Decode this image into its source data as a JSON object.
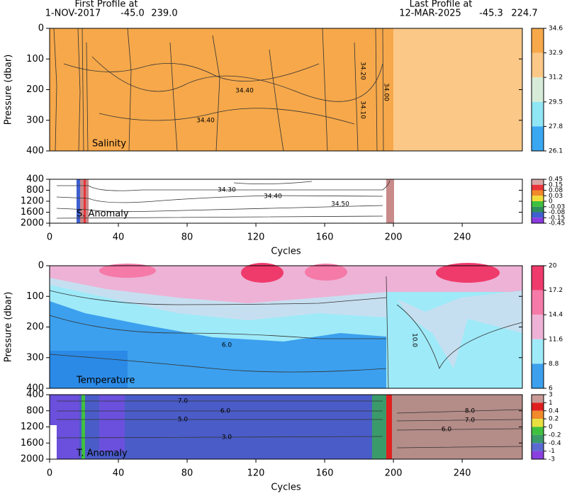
{
  "header": {
    "first_label": "First Profile at",
    "first_date": "1-NOV-2017",
    "first_lat": "-45.0",
    "first_lon": "239.0",
    "last_label": "Last Profile at",
    "last_date": "12-MAR-2025",
    "last_lat": "-45.3",
    "last_lon": "224.7"
  },
  "chart_data": [
    {
      "type": "contour",
      "title": "Salinity",
      "y_label": "Pressure (dbar)",
      "xlim": [
        0,
        275
      ],
      "ylim": [
        0,
        400
      ],
      "y_reversed": true,
      "yticks": [
        0,
        100,
        200,
        300,
        400
      ],
      "colorbar": {
        "ticks": [
          34.6,
          32.9,
          31.2,
          29.5,
          27.8,
          26.1
        ],
        "colors": [
          "#f6a84a",
          "#fcc887",
          "#d6ecd8",
          "#8fe6f5",
          "#3aa7f2"
        ]
      },
      "contour_labels": [
        "34.40",
        "34.40",
        "34.20",
        "34.10",
        "34.00"
      ]
    },
    {
      "type": "contour",
      "title": "S. Anomaly",
      "x_label": "Cycles",
      "xlim": [
        0,
        275
      ],
      "ylim": [
        400,
        2000
      ],
      "y_reversed": true,
      "yticks": [
        400,
        800,
        1200,
        1600,
        2000
      ],
      "xticks": [
        0,
        40,
        80,
        120,
        160,
        200,
        240
      ],
      "colorbar": {
        "ticks": [
          0.45,
          0.15,
          0.08,
          0.03,
          0,
          -0.03,
          -0.08,
          -0.15,
          -0.45
        ],
        "colors": [
          "#d9a6a6",
          "#e8353a",
          "#f08a2a",
          "#f2dc3a",
          "#3fc03f",
          "#2f8f5a",
          "#4060d0",
          "#8a3ae0"
        ]
      },
      "contour_labels": [
        "34.30",
        "34.40",
        "34.50"
      ]
    },
    {
      "type": "contour",
      "title": "Temperature",
      "y_label": "Pressure (dbar)",
      "xlim": [
        0,
        275
      ],
      "ylim": [
        0,
        400
      ],
      "y_reversed": true,
      "yticks": [
        0,
        100,
        200,
        300,
        400
      ],
      "colorbar": {
        "ticks": [
          20,
          17.2,
          14.4,
          11.6,
          8.8,
          6
        ],
        "colors": [
          "#ef3b6b",
          "#f57aa8",
          "#eeb2d6",
          "#9eeaf8",
          "#3ca0ee"
        ]
      },
      "contour_labels": [
        "10.0",
        "6.0"
      ]
    },
    {
      "type": "contour",
      "title": "T. Anomaly",
      "x_label": "Cycles",
      "xlim": [
        0,
        275
      ],
      "ylim": [
        400,
        2000
      ],
      "y_reversed": true,
      "yticks": [
        400,
        800,
        1200,
        1600,
        2000
      ],
      "xticks": [
        0,
        40,
        80,
        120,
        160,
        200,
        240
      ],
      "colorbar": {
        "ticks": [
          3,
          1,
          0.4,
          0.2,
          0,
          -0.2,
          -0.4,
          -1,
          -3
        ],
        "colors": [
          "#c99a96",
          "#e02020",
          "#f08a2a",
          "#e8e040",
          "#40c040",
          "#3a9a6a",
          "#5a6ad0",
          "#8a40e0"
        ]
      },
      "contour_labels": [
        "7.0",
        "6.0",
        "5.0",
        "3.0",
        "8.0",
        "7.0",
        "6.0"
      ]
    }
  ]
}
